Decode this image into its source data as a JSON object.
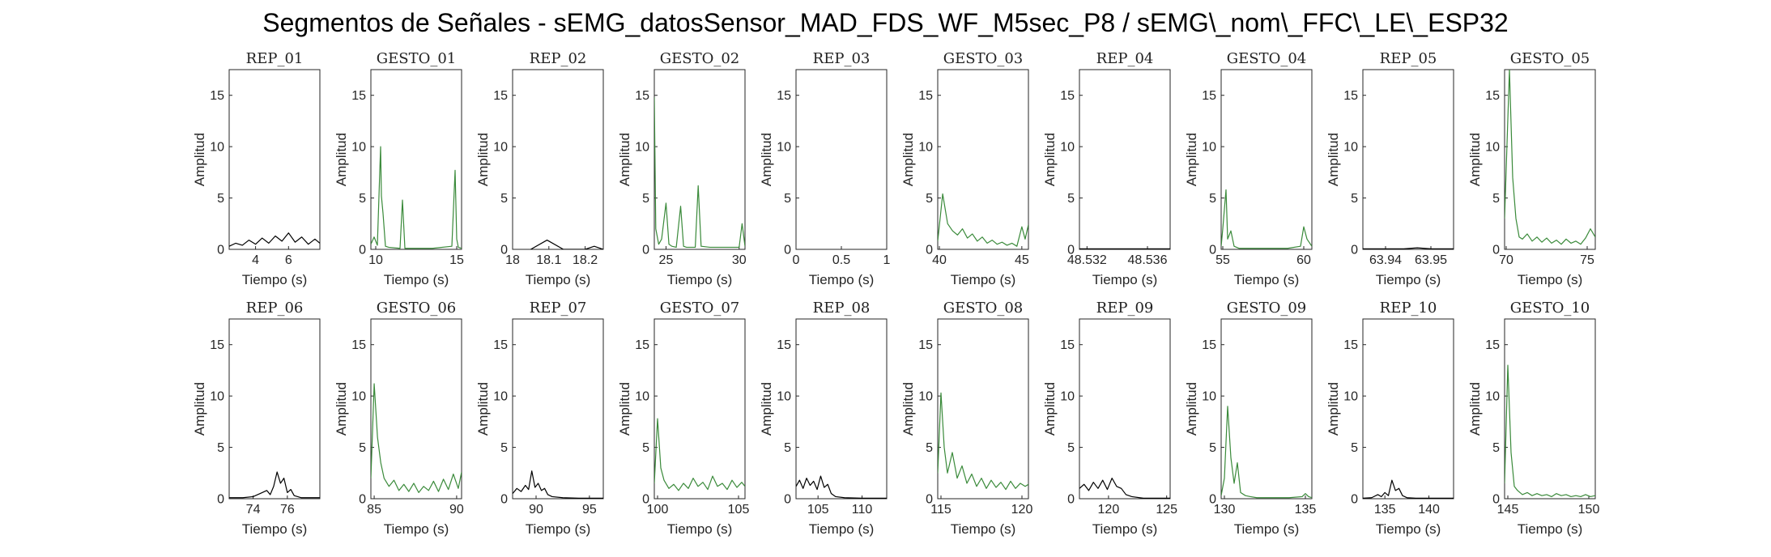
{
  "title": "Segmentos de Señales - sEMG_datosSensor_MAD_FDS_WF_M5sec_P8 / sEMG\\_nom\\_FFC\\_LE\\_ESP32",
  "colors": {
    "rep": "#000000",
    "gesto": "#3a8a3a",
    "axis": "#262626"
  },
  "chart_data": [
    {
      "type": "line",
      "title": "REP_01",
      "xlabel": "Tiempo (s)",
      "ylabel": "Amplitud",
      "xlim": [
        2.4,
        7.9
      ],
      "ylim": [
        0,
        17.5
      ],
      "xticks": [
        4,
        6
      ],
      "xtick_labels": [
        "4",
        "6"
      ],
      "yticks": [
        0,
        5,
        10,
        15
      ],
      "color_key": "rep",
      "x": [
        2.4,
        2.8,
        3.2,
        3.6,
        4.0,
        4.4,
        4.8,
        5.2,
        5.6,
        6.0,
        6.4,
        6.8,
        7.2,
        7.6,
        7.9
      ],
      "y": [
        0.3,
        0.6,
        0.4,
        0.9,
        0.5,
        1.1,
        0.6,
        1.3,
        0.8,
        1.6,
        0.7,
        1.2,
        0.5,
        1.0,
        0.6
      ]
    },
    {
      "type": "line",
      "title": "GESTO_01",
      "xlabel": "Tiempo (s)",
      "ylabel": "Amplitud",
      "xlim": [
        9.7,
        15.3
      ],
      "ylim": [
        0,
        17.5
      ],
      "xticks": [
        10,
        15
      ],
      "xtick_labels": [
        "10",
        "15"
      ],
      "yticks": [
        0,
        5,
        10,
        15
      ],
      "color_key": "gesto",
      "x": [
        9.7,
        9.9,
        10.1,
        10.3,
        10.35,
        10.45,
        10.6,
        10.8,
        11.5,
        11.65,
        11.8,
        12.5,
        13.5,
        14.7,
        14.9,
        15.0,
        15.1,
        15.3
      ],
      "y": [
        0.5,
        1.2,
        0.4,
        10.0,
        5.2,
        3.5,
        0.3,
        0.2,
        0.1,
        4.8,
        0.1,
        0.1,
        0.1,
        0.3,
        7.7,
        1.0,
        0.2,
        0.1
      ]
    },
    {
      "type": "line",
      "title": "REP_02",
      "xlabel": "Tiempo (s)",
      "ylabel": "Amplitud",
      "xlim": [
        18.0,
        18.25
      ],
      "ylim": [
        0,
        17.5
      ],
      "xticks": [
        18,
        18.1,
        18.2
      ],
      "xtick_labels": [
        "18",
        "18.1",
        "18.2"
      ],
      "yticks": [
        0,
        5,
        10,
        15
      ],
      "color_key": "rep",
      "x": [
        18.05,
        18.095,
        18.14,
        18.2,
        18.225,
        18.25
      ],
      "y": [
        0.0,
        0.9,
        0.0,
        0.0,
        0.3,
        0.0
      ]
    },
    {
      "type": "line",
      "title": "GESTO_02",
      "xlabel": "Tiempo (s)",
      "ylabel": "Amplitud",
      "xlim": [
        24.2,
        30.4
      ],
      "ylim": [
        0,
        17.5
      ],
      "xticks": [
        25,
        30
      ],
      "xtick_labels": [
        "25",
        "30"
      ],
      "yticks": [
        0,
        5,
        10,
        15
      ],
      "color_key": "gesto",
      "x": [
        24.2,
        24.3,
        24.5,
        24.7,
        25.0,
        25.2,
        25.4,
        25.7,
        26.0,
        26.2,
        26.4,
        27.0,
        27.2,
        27.4,
        28.0,
        29.0,
        30.0,
        30.2,
        30.4
      ],
      "y": [
        14.8,
        2.0,
        0.5,
        1.0,
        4.5,
        0.5,
        0.3,
        0.2,
        4.2,
        0.3,
        0.2,
        0.2,
        6.2,
        0.3,
        0.2,
        0.2,
        0.2,
        2.5,
        0.3
      ]
    },
    {
      "type": "line",
      "title": "REP_03",
      "xlabel": "Tiempo (s)",
      "ylabel": "Amplitud",
      "xlim": [
        0,
        1
      ],
      "ylim": [
        0,
        17.5
      ],
      "xticks": [
        0,
        0.5,
        1
      ],
      "xtick_labels": [
        "0",
        "0.5",
        "1"
      ],
      "yticks": [
        0,
        5,
        10,
        15
      ],
      "color_key": "rep",
      "x": [],
      "y": []
    },
    {
      "type": "line",
      "title": "GESTO_03",
      "xlabel": "Tiempo (s)",
      "ylabel": "Amplitud",
      "xlim": [
        39.9,
        45.4
      ],
      "ylim": [
        0,
        17.5
      ],
      "xticks": [
        40,
        45
      ],
      "xtick_labels": [
        "40",
        "45"
      ],
      "yticks": [
        0,
        5,
        10,
        15
      ],
      "color_key": "gesto",
      "x": [
        39.9,
        40.2,
        40.5,
        40.8,
        41.1,
        41.4,
        41.7,
        42.0,
        42.3,
        42.6,
        42.9,
        43.2,
        43.5,
        43.8,
        44.1,
        44.4,
        44.7,
        45.0,
        45.2,
        45.4
      ],
      "y": [
        0.8,
        5.4,
        2.5,
        1.8,
        1.4,
        2.0,
        1.1,
        1.5,
        0.8,
        1.2,
        0.6,
        0.9,
        0.5,
        0.7,
        0.4,
        0.6,
        0.3,
        2.2,
        1.0,
        2.4
      ]
    },
    {
      "type": "line",
      "title": "REP_04",
      "xlabel": "Tiempo (s)",
      "ylabel": "Amplitud",
      "xlim": [
        48.5315,
        48.5375
      ],
      "ylim": [
        0,
        17.5
      ],
      "xticks": [
        48.532,
        48.536
      ],
      "xtick_labels": [
        "48.532",
        "48.536"
      ],
      "yticks": [
        0,
        5,
        10,
        15
      ],
      "color_key": "rep",
      "x": [
        48.5315,
        48.5375
      ],
      "y": [
        0.05,
        0.05
      ]
    },
    {
      "type": "line",
      "title": "GESTO_04",
      "xlabel": "Tiempo (s)",
      "ylabel": "Amplitud",
      "xlim": [
        54.9,
        60.5
      ],
      "ylim": [
        0,
        17.5
      ],
      "xticks": [
        55,
        60
      ],
      "xtick_labels": [
        "55",
        "60"
      ],
      "yticks": [
        0,
        5,
        10,
        15
      ],
      "color_key": "gesto",
      "x": [
        54.9,
        55.0,
        55.2,
        55.3,
        55.5,
        55.7,
        56.0,
        57.0,
        58.0,
        59.0,
        59.8,
        60.0,
        60.2,
        60.5
      ],
      "y": [
        0.3,
        2.0,
        5.8,
        1.0,
        1.8,
        0.3,
        0.1,
        0.1,
        0.1,
        0.1,
        0.3,
        2.2,
        1.0,
        0.3
      ]
    },
    {
      "type": "line",
      "title": "REP_05",
      "xlabel": "Tiempo (s)",
      "ylabel": "Amplitud",
      "xlim": [
        63.935,
        63.955
      ],
      "ylim": [
        0,
        17.5
      ],
      "xticks": [
        63.94,
        63.95
      ],
      "xtick_labels": [
        "63.94",
        "63.95"
      ],
      "yticks": [
        0,
        5,
        10,
        15
      ],
      "color_key": "rep",
      "x": [
        63.935,
        63.944,
        63.947,
        63.95,
        63.955
      ],
      "y": [
        0.05,
        0.05,
        0.15,
        0.05,
        0.05
      ]
    },
    {
      "type": "line",
      "title": "GESTO_05",
      "xlabel": "Tiempo (s)",
      "ylabel": "Amplitud",
      "xlim": [
        69.9,
        75.5
      ],
      "ylim": [
        0,
        17.5
      ],
      "xticks": [
        70,
        75
      ],
      "xtick_labels": [
        "70",
        "75"
      ],
      "yticks": [
        0,
        5,
        10,
        15
      ],
      "color_key": "gesto",
      "x": [
        69.9,
        70.2,
        70.4,
        70.6,
        70.8,
        71.0,
        71.3,
        71.6,
        71.9,
        72.2,
        72.5,
        72.8,
        73.1,
        73.4,
        73.7,
        74.0,
        74.3,
        74.6,
        74.9,
        75.2,
        75.5
      ],
      "y": [
        3.0,
        17.5,
        7.0,
        3.0,
        1.2,
        1.0,
        1.5,
        0.8,
        1.2,
        0.7,
        1.1,
        0.6,
        0.9,
        0.5,
        1.0,
        0.6,
        0.8,
        0.5,
        1.1,
        2.0,
        1.2
      ]
    },
    {
      "type": "line",
      "title": "REP_06",
      "xlabel": "Tiempo (s)",
      "ylabel": "Amplitud",
      "xlim": [
        72.6,
        77.9
      ],
      "ylim": [
        0,
        17.5
      ],
      "xticks": [
        74,
        76
      ],
      "xtick_labels": [
        "74",
        "76"
      ],
      "yticks": [
        0,
        5,
        10,
        15
      ],
      "color_key": "rep",
      "x": [
        72.6,
        73.4,
        74.0,
        74.4,
        74.8,
        75.0,
        75.2,
        75.4,
        75.6,
        75.8,
        76.0,
        76.2,
        76.4,
        76.8,
        77.2,
        77.9
      ],
      "y": [
        0.1,
        0.1,
        0.2,
        0.5,
        0.8,
        0.4,
        1.2,
        2.6,
        1.5,
        2.0,
        0.6,
        0.9,
        0.3,
        0.1,
        0.1,
        0.1
      ]
    },
    {
      "type": "line",
      "title": "GESTO_06",
      "xlabel": "Tiempo (s)",
      "ylabel": "Amplitud",
      "xlim": [
        84.8,
        90.3
      ],
      "ylim": [
        0,
        17.5
      ],
      "xticks": [
        85,
        90
      ],
      "xtick_labels": [
        "85",
        "90"
      ],
      "yticks": [
        0,
        5,
        10,
        15
      ],
      "color_key": "gesto",
      "x": [
        84.8,
        85.0,
        85.2,
        85.4,
        85.6,
        85.9,
        86.2,
        86.5,
        86.8,
        87.1,
        87.4,
        87.7,
        88.0,
        88.3,
        88.6,
        88.9,
        89.2,
        89.5,
        89.8,
        90.1,
        90.3
      ],
      "y": [
        2.0,
        11.2,
        6.0,
        3.5,
        2.0,
        1.2,
        1.8,
        0.8,
        1.4,
        0.7,
        1.5,
        0.6,
        1.2,
        0.8,
        1.7,
        0.7,
        1.9,
        0.9,
        2.4,
        1.0,
        2.6
      ]
    },
    {
      "type": "line",
      "title": "REP_07",
      "xlabel": "Tiempo (s)",
      "ylabel": "Amplitud",
      "xlim": [
        87.8,
        96.3
      ],
      "ylim": [
        0,
        17.5
      ],
      "xticks": [
        90,
        95
      ],
      "xtick_labels": [
        "90",
        "95"
      ],
      "yticks": [
        0,
        5,
        10,
        15
      ],
      "color_key": "rep",
      "x": [
        87.8,
        88.2,
        88.6,
        89.0,
        89.3,
        89.6,
        89.9,
        90.2,
        90.5,
        90.8,
        91.1,
        91.5,
        92.5,
        94.0,
        96.3
      ],
      "y": [
        0.5,
        1.0,
        0.7,
        1.3,
        0.9,
        2.7,
        1.1,
        1.5,
        0.8,
        1.0,
        0.4,
        0.2,
        0.1,
        0.05,
        0.05
      ]
    },
    {
      "type": "line",
      "title": "GESTO_07",
      "xlabel": "Tiempo (s)",
      "ylabel": "Amplitud",
      "xlim": [
        99.8,
        105.4
      ],
      "ylim": [
        0,
        17.5
      ],
      "xticks": [
        100,
        105
      ],
      "xtick_labels": [
        "100",
        "105"
      ],
      "yticks": [
        0,
        5,
        10,
        15
      ],
      "color_key": "gesto",
      "x": [
        99.8,
        100.0,
        100.2,
        100.4,
        100.7,
        101.0,
        101.3,
        101.6,
        101.9,
        102.2,
        102.5,
        102.8,
        103.1,
        103.4,
        103.7,
        104.0,
        104.3,
        104.6,
        104.9,
        105.2,
        105.4
      ],
      "y": [
        1.5,
        7.8,
        3.0,
        1.8,
        1.0,
        1.4,
        0.8,
        1.5,
        1.0,
        2.0,
        1.2,
        1.6,
        0.9,
        2.2,
        1.2,
        1.5,
        0.9,
        1.8,
        1.1,
        1.6,
        1.2
      ]
    },
    {
      "type": "line",
      "title": "REP_08",
      "xlabel": "Tiempo (s)",
      "ylabel": "Amplitud",
      "xlim": [
        102.5,
        112.8
      ],
      "ylim": [
        0,
        17.5
      ],
      "xticks": [
        105,
        110
      ],
      "xtick_labels": [
        "105",
        "110"
      ],
      "yticks": [
        0,
        5,
        10,
        15
      ],
      "color_key": "rep",
      "x": [
        102.5,
        102.9,
        103.3,
        103.7,
        104.1,
        104.5,
        104.9,
        105.3,
        105.7,
        106.1,
        106.5,
        107.0,
        108.0,
        110.0,
        112.8
      ],
      "y": [
        1.2,
        1.8,
        1.0,
        2.0,
        1.3,
        1.7,
        0.9,
        2.2,
        1.1,
        1.4,
        0.5,
        0.2,
        0.1,
        0.05,
        0.05
      ]
    },
    {
      "type": "line",
      "title": "GESTO_08",
      "xlabel": "Tiempo (s)",
      "ylabel": "Amplitud",
      "xlim": [
        114.8,
        120.4
      ],
      "ylim": [
        0,
        17.5
      ],
      "xticks": [
        115,
        120
      ],
      "xtick_labels": [
        "115",
        "120"
      ],
      "yticks": [
        0,
        5,
        10,
        15
      ],
      "color_key": "gesto",
      "x": [
        114.8,
        115.0,
        115.2,
        115.4,
        115.7,
        116.0,
        116.3,
        116.6,
        116.9,
        117.2,
        117.5,
        117.8,
        118.1,
        118.4,
        118.7,
        119.0,
        119.3,
        119.6,
        119.9,
        120.2,
        120.4
      ],
      "y": [
        2.5,
        10.3,
        5.0,
        2.5,
        4.5,
        2.0,
        3.2,
        1.5,
        2.4,
        1.2,
        2.0,
        1.0,
        1.8,
        1.1,
        1.6,
        0.9,
        1.7,
        1.0,
        1.5,
        1.2,
        1.4
      ]
    },
    {
      "type": "line",
      "title": "REP_09",
      "xlabel": "Tiempo (s)",
      "ylabel": "Amplitud",
      "xlim": [
        117.5,
        125.3
      ],
      "ylim": [
        0,
        17.5
      ],
      "xticks": [
        120,
        125
      ],
      "xtick_labels": [
        "120",
        "125"
      ],
      "yticks": [
        0,
        5,
        10,
        15
      ],
      "color_key": "rep",
      "x": [
        117.5,
        117.9,
        118.3,
        118.7,
        119.1,
        119.5,
        119.9,
        120.3,
        120.7,
        121.1,
        121.5,
        122.0,
        123.0,
        125.3
      ],
      "y": [
        1.0,
        1.4,
        0.8,
        1.6,
        1.0,
        1.8,
        0.9,
        2.0,
        1.2,
        1.0,
        0.4,
        0.2,
        0.05,
        0.05
      ]
    },
    {
      "type": "line",
      "title": "GESTO_09",
      "xlabel": "Tiempo (s)",
      "ylabel": "Amplitud",
      "xlim": [
        129.8,
        135.4
      ],
      "ylim": [
        0,
        17.5
      ],
      "xticks": [
        130,
        135
      ],
      "xtick_labels": [
        "130",
        "135"
      ],
      "yticks": [
        0,
        5,
        10,
        15
      ],
      "color_key": "gesto",
      "x": [
        129.8,
        130.0,
        130.2,
        130.4,
        130.6,
        130.8,
        131.0,
        131.3,
        131.6,
        132.0,
        133.0,
        134.0,
        134.8,
        135.0,
        135.2,
        135.4
      ],
      "y": [
        0.3,
        2.0,
        9.0,
        4.0,
        1.5,
        3.5,
        0.6,
        0.3,
        0.2,
        0.1,
        0.1,
        0.1,
        0.2,
        0.5,
        0.2,
        0.1
      ]
    },
    {
      "type": "line",
      "title": "REP_10",
      "xlabel": "Tiempo (s)",
      "ylabel": "Amplitud",
      "xlim": [
        132.5,
        142.8
      ],
      "ylim": [
        0,
        17.5
      ],
      "xticks": [
        135,
        140
      ],
      "xtick_labels": [
        "135",
        "140"
      ],
      "yticks": [
        0,
        5,
        10,
        15
      ],
      "color_key": "rep",
      "x": [
        132.5,
        133.5,
        134.2,
        134.6,
        135.0,
        135.4,
        135.8,
        136.2,
        136.6,
        137.0,
        137.5,
        138.5,
        140.0,
        142.8
      ],
      "y": [
        0.05,
        0.1,
        0.4,
        0.2,
        0.6,
        0.3,
        1.8,
        0.8,
        1.0,
        0.3,
        0.1,
        0.05,
        0.05,
        0.05
      ]
    },
    {
      "type": "line",
      "title": "GESTO_10",
      "xlabel": "Tiempo (s)",
      "ylabel": "Amplitud",
      "xlim": [
        144.8,
        150.4
      ],
      "ylim": [
        0,
        17.5
      ],
      "xticks": [
        145,
        150
      ],
      "xtick_labels": [
        "145",
        "150"
      ],
      "yticks": [
        0,
        5,
        10,
        15
      ],
      "color_key": "gesto",
      "x": [
        144.8,
        145.0,
        145.2,
        145.4,
        145.6,
        145.9,
        146.2,
        146.5,
        146.8,
        147.1,
        147.4,
        147.7,
        148.0,
        148.3,
        148.6,
        148.9,
        149.2,
        149.5,
        149.8,
        150.1,
        150.4
      ],
      "y": [
        1.5,
        13.0,
        4.5,
        1.2,
        0.8,
        0.4,
        0.6,
        0.3,
        0.5,
        0.3,
        0.4,
        0.2,
        0.5,
        0.3,
        0.4,
        0.2,
        0.3,
        0.2,
        0.4,
        0.2,
        0.3
      ]
    }
  ]
}
